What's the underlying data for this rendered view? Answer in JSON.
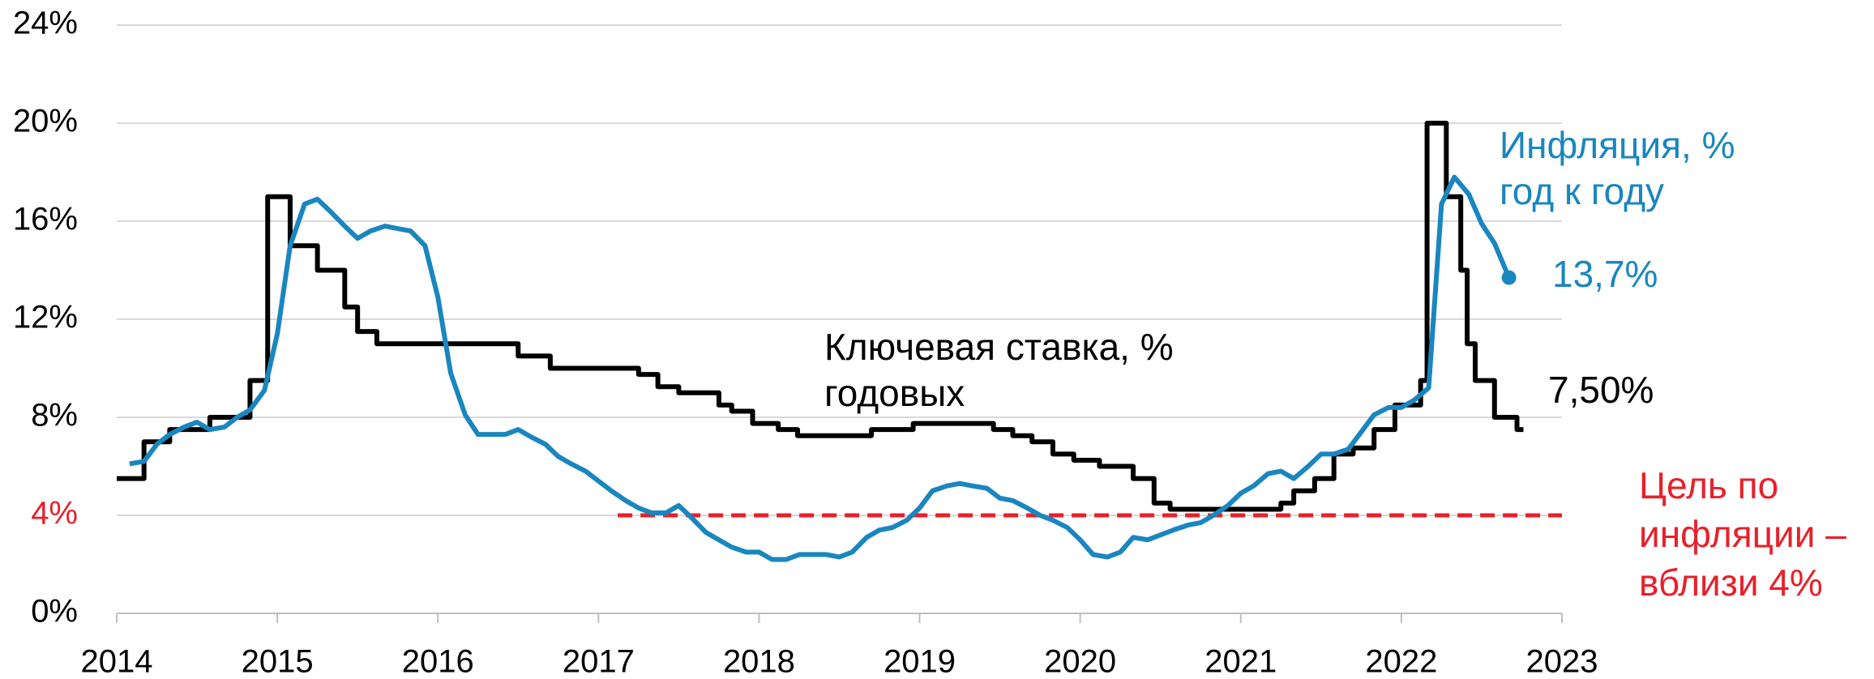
{
  "chart_data": {
    "type": "line",
    "xlim": [
      2014,
      2023
    ],
    "xticks": [
      2014,
      2015,
      2016,
      2017,
      2018,
      2019,
      2020,
      2021,
      2022,
      2023
    ],
    "ylim": [
      0,
      24
    ],
    "yticks": [
      {
        "value": 0,
        "label": "0%"
      },
      {
        "value": 4,
        "label": "4%"
      },
      {
        "value": 8,
        "label": "8%"
      },
      {
        "value": 12,
        "label": "12%"
      },
      {
        "value": 16,
        "label": "16%"
      },
      {
        "value": 20,
        "label": "20%"
      },
      {
        "value": 24,
        "label": "24%"
      }
    ],
    "grid": true,
    "series": [
      {
        "name": [
          "Ключевая ставка, %",
          "годовых"
        ],
        "color": "#000000",
        "step": true,
        "x": [
          2014.0,
          2014.17,
          2014.33,
          2014.58,
          2014.83,
          2014.94,
          2015.08,
          2015.25,
          2015.42,
          2015.5,
          2015.62,
          2016.5,
          2016.7,
          2017.25,
          2017.37,
          2017.5,
          2017.75,
          2017.83,
          2017.96,
          2018.12,
          2018.24,
          2018.7,
          2018.96,
          2019.46,
          2019.58,
          2019.7,
          2019.83,
          2019.96,
          2020.12,
          2020.33,
          2020.46,
          2020.56,
          2021.25,
          2021.33,
          2021.46,
          2021.58,
          2021.7,
          2021.83,
          2021.96,
          2022.12,
          2022.16,
          2022.28,
          2022.37,
          2022.41,
          2022.46,
          2022.58,
          2022.72,
          2022.76
        ],
        "values": [
          5.5,
          7.0,
          7.5,
          8.0,
          9.5,
          17,
          15,
          14,
          12.5,
          11.5,
          11,
          10.5,
          10,
          9.75,
          9.25,
          9,
          8.5,
          8.25,
          7.75,
          7.5,
          7.25,
          7.5,
          7.75,
          7.5,
          7.25,
          7,
          6.5,
          6.25,
          6,
          5.5,
          4.5,
          4.25,
          4.5,
          5,
          5.5,
          6.5,
          6.75,
          7.5,
          8.5,
          9.5,
          20,
          17,
          14,
          11,
          9.5,
          8,
          7.5,
          7.5
        ],
        "value_labels": [
          null,
          null,
          null,
          null,
          null,
          null,
          null,
          null,
          null,
          null,
          null,
          null,
          null,
          null,
          null,
          null,
          null,
          null,
          null,
          null,
          null,
          null,
          null,
          null,
          null,
          null,
          null,
          null,
          null,
          null,
          null,
          null,
          null,
          null,
          null,
          null,
          null,
          null,
          null,
          null,
          null,
          null,
          null,
          null,
          null,
          null,
          null,
          "7,50%"
        ]
      },
      {
        "name": [
          "Инфляция, %",
          "год к году"
        ],
        "color": "#1a86bf",
        "x": [
          2014.08,
          2014.17,
          2014.25,
          2014.33,
          2014.42,
          2014.5,
          2014.58,
          2014.67,
          2014.75,
          2014.83,
          2014.92,
          2015.0,
          2015.08,
          2015.17,
          2015.25,
          2015.33,
          2015.42,
          2015.5,
          2015.58,
          2015.67,
          2015.75,
          2015.83,
          2015.92,
          2016.0,
          2016.08,
          2016.17,
          2016.25,
          2016.33,
          2016.42,
          2016.5,
          2016.58,
          2016.67,
          2016.75,
          2016.83,
          2016.92,
          2017.0,
          2017.08,
          2017.17,
          2017.25,
          2017.33,
          2017.42,
          2017.5,
          2017.58,
          2017.67,
          2017.75,
          2017.83,
          2017.92,
          2018.0,
          2018.08,
          2018.17,
          2018.25,
          2018.33,
          2018.42,
          2018.5,
          2018.58,
          2018.67,
          2018.75,
          2018.83,
          2018.92,
          2019.0,
          2019.08,
          2019.17,
          2019.25,
          2019.33,
          2019.42,
          2019.5,
          2019.58,
          2019.67,
          2019.75,
          2019.83,
          2019.92,
          2020.0,
          2020.08,
          2020.17,
          2020.25,
          2020.33,
          2020.42,
          2020.5,
          2020.58,
          2020.67,
          2020.75,
          2020.83,
          2020.92,
          2021.0,
          2021.08,
          2021.17,
          2021.25,
          2021.33,
          2021.42,
          2021.5,
          2021.58,
          2021.67,
          2021.75,
          2021.83,
          2021.92,
          2022.0,
          2022.08,
          2022.17,
          2022.25,
          2022.33,
          2022.42,
          2022.5,
          2022.58,
          2022.67
        ],
        "values": [
          6.1,
          6.2,
          6.9,
          7.3,
          7.6,
          7.8,
          7.5,
          7.6,
          8.0,
          8.3,
          9.1,
          11.4,
          15.0,
          16.7,
          16.9,
          16.4,
          15.8,
          15.3,
          15.6,
          15.8,
          15.7,
          15.6,
          15.0,
          12.9,
          9.8,
          8.1,
          7.3,
          7.3,
          7.3,
          7.5,
          7.2,
          6.9,
          6.4,
          6.1,
          5.8,
          5.4,
          5.0,
          4.6,
          4.3,
          4.1,
          4.1,
          4.4,
          3.9,
          3.3,
          3.0,
          2.7,
          2.5,
          2.5,
          2.2,
          2.2,
          2.4,
          2.4,
          2.4,
          2.3,
          2.5,
          3.1,
          3.4,
          3.5,
          3.8,
          4.3,
          5.0,
          5.2,
          5.3,
          5.2,
          5.1,
          4.7,
          4.6,
          4.3,
          4.0,
          3.8,
          3.5,
          3.0,
          2.4,
          2.3,
          2.5,
          3.1,
          3.0,
          3.2,
          3.4,
          3.6,
          3.7,
          4.0,
          4.4,
          4.9,
          5.2,
          5.7,
          5.8,
          5.5,
          6.0,
          6.5,
          6.5,
          6.7,
          7.4,
          8.1,
          8.4,
          8.4,
          8.7,
          9.2,
          16.7,
          17.8,
          17.1,
          15.9,
          15.1,
          13.7
        ],
        "value_labels": [
          null,
          null,
          null,
          null,
          null,
          null,
          null,
          null,
          null,
          null,
          null,
          null,
          null,
          null,
          null,
          null,
          null,
          null,
          null,
          null,
          null,
          null,
          null,
          null,
          null,
          null,
          null,
          null,
          null,
          null,
          null,
          null,
          null,
          null,
          null,
          null,
          null,
          null,
          null,
          null,
          null,
          null,
          null,
          null,
          null,
          null,
          null,
          null,
          null,
          null,
          null,
          null,
          null,
          null,
          null,
          null,
          null,
          null,
          null,
          null,
          null,
          null,
          null,
          null,
          null,
          null,
          null,
          null,
          null,
          null,
          null,
          null,
          null,
          null,
          null,
          null,
          null,
          null,
          null,
          null,
          null,
          null,
          null,
          null,
          null,
          null,
          null,
          null,
          null,
          null,
          null,
          null,
          null,
          null,
          null,
          null,
          null,
          null,
          null,
          null,
          null,
          null,
          null,
          "13,7%"
        ]
      }
    ],
    "target": {
      "name": [
        "Цель по",
        "инфляции –",
        "вблизи 4%"
      ],
      "value": 4,
      "x": [
        2017.12,
        2023
      ],
      "color": "#e8202a"
    }
  }
}
